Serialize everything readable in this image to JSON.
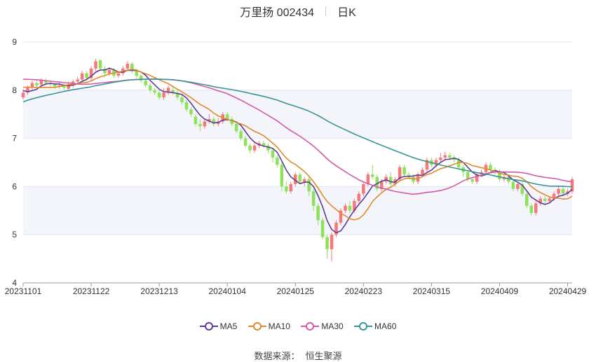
{
  "header": {
    "stock_name": "万里扬 002434",
    "period": "日K"
  },
  "legend": [
    {
      "name": "MA5",
      "color": "#5e3c99"
    },
    {
      "name": "MA10",
      "color": "#e08a2c"
    },
    {
      "name": "MA30",
      "color": "#d35aa8"
    },
    {
      "name": "MA60",
      "color": "#3a9396"
    }
  ],
  "footer": {
    "source_label": "数据来源：",
    "source_name": "恒生聚源"
  },
  "colors": {
    "up": "#f47a7a",
    "down": "#8ee15a",
    "band": "#f3f5fa"
  },
  "chart_data": {
    "type": "candlestick",
    "ylim": [
      4,
      9
    ],
    "yticks": [
      4,
      5,
      6,
      7,
      8,
      9
    ],
    "x_tick_labels": [
      "20231101",
      "20231122",
      "20231213",
      "20240104",
      "20240125",
      "20240223",
      "20240315",
      "20240409",
      "20240429"
    ],
    "x_tick_index": [
      0,
      15,
      30,
      45,
      60,
      75,
      90,
      105,
      120
    ],
    "candles": [
      [
        7.85,
        7.95,
        8.02,
        7.8
      ],
      [
        7.95,
        8.05,
        8.1,
        7.9
      ],
      [
        8.05,
        8.15,
        8.2,
        8.0
      ],
      [
        8.15,
        8.1,
        8.2,
        8.05
      ],
      [
        8.12,
        8.2,
        8.25,
        8.08
      ],
      [
        8.2,
        8.15,
        8.25,
        8.1
      ],
      [
        8.15,
        8.12,
        8.2,
        8.06
      ],
      [
        8.12,
        8.08,
        8.15,
        8.02
      ],
      [
        8.08,
        8.1,
        8.16,
        8.03
      ],
      [
        8.1,
        8.05,
        8.14,
        8.0
      ],
      [
        8.03,
        8.12,
        8.18,
        8.0
      ],
      [
        8.1,
        8.18,
        8.22,
        8.06
      ],
      [
        8.18,
        8.22,
        8.28,
        8.14
      ],
      [
        8.22,
        8.35,
        8.4,
        8.18
      ],
      [
        8.35,
        8.25,
        8.4,
        8.2
      ],
      [
        8.25,
        8.45,
        8.5,
        8.2
      ],
      [
        8.45,
        8.6,
        8.65,
        8.4
      ],
      [
        8.62,
        8.45,
        8.65,
        8.4
      ],
      [
        8.45,
        8.35,
        8.5,
        8.28
      ],
      [
        8.35,
        8.42,
        8.48,
        8.3
      ],
      [
        8.42,
        8.3,
        8.46,
        8.25
      ],
      [
        8.3,
        8.35,
        8.4,
        8.26
      ],
      [
        8.35,
        8.45,
        8.5,
        8.3
      ],
      [
        8.45,
        8.55,
        8.6,
        8.4
      ],
      [
        8.55,
        8.4,
        8.58,
        8.35
      ],
      [
        8.4,
        8.3,
        8.45,
        8.25
      ],
      [
        8.3,
        8.2,
        8.35,
        8.15
      ],
      [
        8.2,
        8.1,
        8.25,
        8.05
      ],
      [
        8.1,
        8.0,
        8.15,
        7.95
      ],
      [
        8.0,
        7.95,
        8.05,
        7.9
      ],
      [
        7.95,
        7.85,
        8.0,
        7.8
      ],
      [
        7.85,
        7.95,
        8.05,
        7.8
      ],
      [
        7.95,
        8.05,
        8.1,
        7.9
      ],
      [
        8.0,
        7.95,
        8.1,
        7.9
      ],
      [
        7.95,
        7.85,
        8.0,
        7.8
      ],
      [
        7.85,
        7.75,
        7.9,
        7.7
      ],
      [
        7.75,
        7.6,
        7.8,
        7.55
      ],
      [
        7.6,
        7.5,
        7.65,
        7.45
      ],
      [
        7.45,
        7.3,
        7.5,
        7.25
      ],
      [
        7.3,
        7.25,
        7.4,
        7.15
      ],
      [
        7.25,
        7.35,
        7.4,
        7.2
      ],
      [
        7.35,
        7.4,
        7.5,
        7.3
      ],
      [
        7.4,
        7.3,
        7.45,
        7.25
      ],
      [
        7.3,
        7.35,
        7.42,
        7.25
      ],
      [
        7.35,
        7.5,
        7.55,
        7.3
      ],
      [
        7.5,
        7.4,
        7.55,
        7.35
      ],
      [
        7.4,
        7.3,
        7.45,
        7.25
      ],
      [
        7.3,
        7.15,
        7.35,
        7.1
      ],
      [
        7.15,
        7.0,
        7.2,
        6.95
      ],
      [
        7.0,
        6.85,
        7.05,
        6.8
      ],
      [
        6.85,
        6.75,
        6.9,
        6.7
      ],
      [
        6.75,
        6.85,
        6.9,
        6.7
      ],
      [
        6.85,
        6.9,
        6.95,
        6.8
      ],
      [
        6.9,
        6.85,
        6.95,
        6.8
      ],
      [
        6.85,
        6.75,
        6.9,
        6.7
      ],
      [
        6.75,
        6.6,
        6.8,
        6.5
      ],
      [
        6.6,
        6.45,
        6.65,
        6.4
      ],
      [
        6.45,
        6.0,
        6.5,
        5.9
      ],
      [
        6.0,
        5.9,
        6.1,
        5.85
      ],
      [
        5.9,
        6.05,
        6.1,
        5.85
      ],
      [
        6.05,
        6.25,
        6.3,
        6.0
      ],
      [
        6.25,
        6.1,
        6.3,
        6.05
      ],
      [
        6.1,
        6.15,
        6.2,
        6.0
      ],
      [
        6.15,
        5.9,
        6.2,
        5.8
      ],
      [
        5.9,
        5.6,
        5.95,
        5.5
      ],
      [
        5.6,
        5.3,
        5.65,
        5.2
      ],
      [
        5.3,
        4.95,
        5.35,
        4.9
      ],
      [
        4.95,
        4.7,
        5.0,
        4.5
      ],
      [
        4.7,
        5.0,
        5.05,
        4.45
      ],
      [
        5.0,
        5.25,
        5.3,
        4.95
      ],
      [
        5.25,
        5.5,
        5.55,
        5.2
      ],
      [
        5.5,
        5.6,
        5.65,
        5.45
      ],
      [
        5.6,
        5.5,
        5.7,
        5.45
      ],
      [
        5.5,
        5.7,
        5.75,
        5.45
      ],
      [
        5.7,
        5.85,
        5.9,
        5.65
      ],
      [
        5.85,
        6.05,
        6.1,
        5.8
      ],
      [
        6.05,
        6.25,
        6.3,
        6.0
      ],
      [
        6.25,
        6.2,
        6.45,
        6.15
      ],
      [
        6.2,
        5.95,
        6.25,
        5.9
      ],
      [
        5.95,
        6.1,
        6.15,
        5.9
      ],
      [
        6.1,
        6.2,
        6.25,
        6.05
      ],
      [
        6.2,
        6.05,
        6.3,
        6.0
      ],
      [
        6.05,
        6.15,
        6.2,
        6.0
      ],
      [
        6.15,
        6.4,
        6.45,
        6.1
      ],
      [
        6.4,
        6.25,
        6.45,
        6.2
      ],
      [
        6.25,
        6.2,
        6.3,
        6.15
      ],
      [
        6.2,
        6.1,
        6.25,
        6.05
      ],
      [
        6.1,
        6.25,
        6.3,
        6.05
      ],
      [
        6.25,
        6.35,
        6.4,
        6.2
      ],
      [
        6.35,
        6.55,
        6.6,
        6.3
      ],
      [
        6.55,
        6.45,
        6.6,
        6.4
      ],
      [
        6.45,
        6.55,
        6.6,
        6.4
      ],
      [
        6.55,
        6.6,
        6.7,
        6.5
      ],
      [
        6.6,
        6.65,
        6.72,
        6.55
      ],
      [
        6.65,
        6.6,
        6.7,
        6.55
      ],
      [
        6.6,
        6.55,
        6.65,
        6.5
      ],
      [
        6.55,
        6.4,
        6.6,
        6.35
      ],
      [
        6.4,
        6.3,
        6.45,
        6.2
      ],
      [
        6.3,
        6.15,
        6.35,
        6.1
      ],
      [
        6.15,
        6.1,
        6.2,
        6.05
      ],
      [
        6.1,
        6.25,
        6.3,
        6.05
      ],
      [
        6.25,
        6.3,
        6.35,
        6.2
      ],
      [
        6.3,
        6.45,
        6.5,
        6.25
      ],
      [
        6.45,
        6.35,
        6.5,
        6.3
      ],
      [
        6.35,
        6.3,
        6.4,
        6.25
      ],
      [
        6.3,
        6.15,
        6.35,
        6.1
      ],
      [
        6.15,
        6.2,
        6.25,
        6.1
      ],
      [
        6.2,
        6.1,
        6.25,
        6.05
      ],
      [
        6.1,
        5.95,
        6.15,
        5.9
      ],
      [
        5.95,
        6.05,
        6.1,
        5.9
      ],
      [
        6.05,
        5.85,
        6.1,
        5.8
      ],
      [
        5.85,
        5.6,
        5.9,
        5.55
      ],
      [
        5.6,
        5.45,
        5.65,
        5.4
      ],
      [
        5.45,
        5.65,
        5.7,
        5.4
      ],
      [
        5.65,
        5.75,
        5.8,
        5.6
      ],
      [
        5.75,
        5.7,
        5.8,
        5.65
      ],
      [
        5.7,
        5.75,
        5.8,
        5.65
      ],
      [
        5.75,
        5.85,
        5.9,
        5.7
      ],
      [
        5.85,
        5.95,
        6.0,
        5.8
      ],
      [
        5.95,
        5.85,
        6.0,
        5.8
      ],
      [
        5.85,
        5.9,
        5.95,
        5.8
      ],
      [
        5.9,
        6.15,
        6.2,
        5.85
      ]
    ]
  }
}
